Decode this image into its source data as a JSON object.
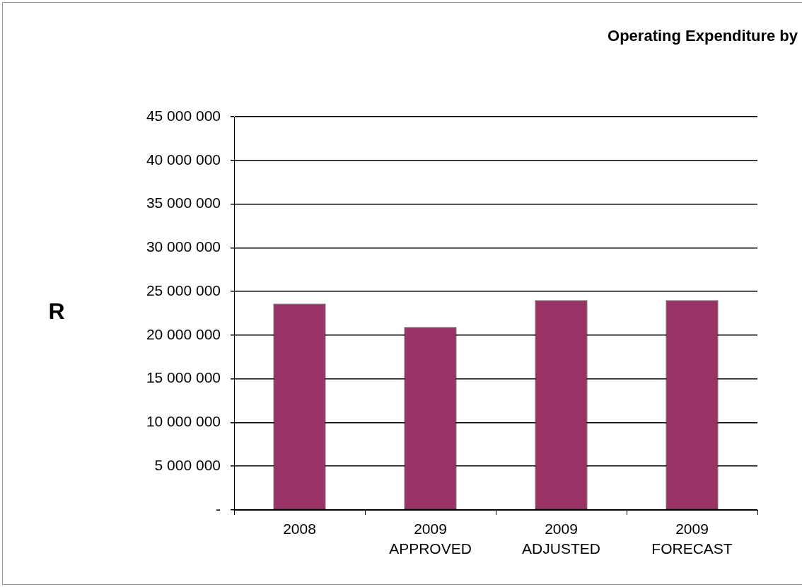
{
  "chart_data": {
    "type": "bar",
    "title": "Operating Expenditure by",
    "ylabel": "R",
    "categories": [
      "2008",
      "2009 APPROVED",
      "2009 ADJUSTED",
      "2009 FORECAST"
    ],
    "values": [
      23600000,
      20900000,
      24000000,
      24000000
    ],
    "color": "#993366",
    "ylim": [
      0,
      45000000
    ],
    "yticks": [
      {
        "value": 0,
        "label": "-"
      },
      {
        "value": 5000000,
        "label": "5 000 000"
      },
      {
        "value": 10000000,
        "label": "10 000 000"
      },
      {
        "value": 15000000,
        "label": "15 000 000"
      },
      {
        "value": 20000000,
        "label": "20 000 000"
      },
      {
        "value": 25000000,
        "label": "25 000 000"
      },
      {
        "value": 30000000,
        "label": "30 000 000"
      },
      {
        "value": 35000000,
        "label": "35 000 000"
      },
      {
        "value": 40000000,
        "label": "40 000 000"
      },
      {
        "value": 45000000,
        "label": "45 000 000"
      }
    ],
    "grid": "y"
  }
}
